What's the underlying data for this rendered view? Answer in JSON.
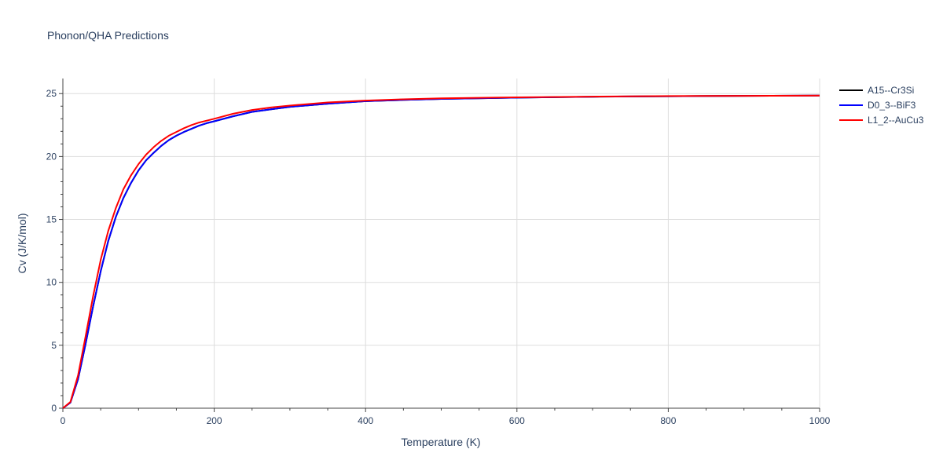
{
  "chart_data": {
    "type": "line",
    "title": "Phonon/QHA Predictions",
    "xlabel": "Temperature (K)",
    "ylabel": "Cv (J/K/mol)",
    "xlim": [
      0,
      1000
    ],
    "ylim": [
      0,
      26.2
    ],
    "x_ticks": [
      0,
      200,
      400,
      600,
      800,
      1000
    ],
    "y_ticks": [
      0,
      5,
      10,
      15,
      20,
      25
    ],
    "grid": true,
    "legend_position": "top-right",
    "series": [
      {
        "name": "A15--Cr3Si",
        "color": "#000000",
        "x": [
          0,
          10,
          20,
          30,
          40,
          50,
          60,
          70,
          80,
          90,
          100,
          110,
          120,
          130,
          140,
          150,
          160,
          170,
          180,
          190,
          200,
          225,
          250,
          275,
          300,
          350,
          400,
          450,
          500,
          600,
          700,
          800,
          900,
          1000
        ],
        "y": [
          0,
          0.45,
          2.3,
          5.1,
          8.1,
          10.9,
          13.3,
          15.2,
          16.7,
          17.9,
          18.9,
          19.7,
          20.3,
          20.85,
          21.3,
          21.65,
          21.95,
          22.2,
          22.45,
          22.65,
          22.8,
          23.2,
          23.55,
          23.75,
          23.95,
          24.2,
          24.4,
          24.5,
          24.58,
          24.68,
          24.75,
          24.79,
          24.82,
          24.84
        ]
      },
      {
        "name": "D0_3--BiF3",
        "color": "#0000ff",
        "x": [
          0,
          10,
          20,
          30,
          40,
          50,
          60,
          70,
          80,
          90,
          100,
          110,
          120,
          130,
          140,
          150,
          160,
          170,
          180,
          190,
          200,
          225,
          250,
          275,
          300,
          350,
          400,
          450,
          500,
          600,
          700,
          800,
          900,
          1000
        ],
        "y": [
          0,
          0.45,
          2.3,
          5.1,
          8.1,
          10.9,
          13.3,
          15.2,
          16.7,
          17.9,
          18.9,
          19.7,
          20.3,
          20.85,
          21.3,
          21.65,
          21.95,
          22.2,
          22.45,
          22.65,
          22.8,
          23.2,
          23.55,
          23.75,
          23.95,
          24.2,
          24.4,
          24.5,
          24.58,
          24.68,
          24.75,
          24.79,
          24.82,
          24.84
        ]
      },
      {
        "name": "L1_2--AuCu3",
        "color": "#ff0000",
        "x": [
          0,
          10,
          20,
          30,
          40,
          50,
          60,
          70,
          80,
          90,
          100,
          110,
          120,
          130,
          140,
          150,
          160,
          170,
          180,
          190,
          200,
          225,
          250,
          275,
          300,
          350,
          400,
          450,
          500,
          600,
          700,
          800,
          900,
          1000
        ],
        "y": [
          0,
          0.5,
          2.6,
          5.7,
          8.9,
          11.8,
          14.1,
          15.9,
          17.4,
          18.5,
          19.4,
          20.15,
          20.75,
          21.25,
          21.65,
          21.95,
          22.25,
          22.5,
          22.7,
          22.85,
          23.0,
          23.4,
          23.7,
          23.9,
          24.05,
          24.3,
          24.45,
          24.55,
          24.62,
          24.7,
          24.76,
          24.8,
          24.82,
          24.84
        ]
      }
    ]
  }
}
